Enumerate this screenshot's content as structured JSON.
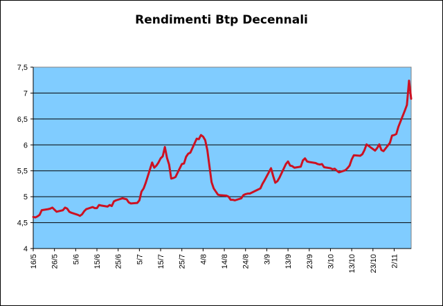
{
  "chart_data": {
    "type": "line",
    "title": "Rendimenti Btp Decennali",
    "xlabel": "",
    "ylabel": "",
    "ylim": [
      4,
      7.5
    ],
    "yticks": [
      "4",
      "4,5",
      "5",
      "5,5",
      "6",
      "6,5",
      "7",
      "7,5"
    ],
    "ytick_values": [
      4,
      4.5,
      5,
      5.5,
      6,
      6.5,
      7,
      7.5
    ],
    "xlim": [
      "2011-05-16",
      "2011-11-10"
    ],
    "xticks": [
      "16/5",
      "26/5",
      "5/6",
      "15/6",
      "25/6",
      "5/7",
      "15/7",
      "25/7",
      "4/8",
      "14/8",
      "24/8",
      "3/9",
      "13/9",
      "23/9",
      "3/10",
      "13/10",
      "23/10",
      "2/11"
    ],
    "xtick_dates": [
      "2011-05-16",
      "2011-05-26",
      "2011-06-05",
      "2011-06-15",
      "2011-06-25",
      "2011-07-05",
      "2011-07-15",
      "2011-07-25",
      "2011-08-04",
      "2011-08-14",
      "2011-08-24",
      "2011-09-03",
      "2011-09-13",
      "2011-09-23",
      "2011-10-03",
      "2011-10-13",
      "2011-10-23",
      "2011-11-02"
    ],
    "grid": "horizontal",
    "plot_background": "#80ccff",
    "series": [
      {
        "name": "",
        "color": "#cc1122",
        "points": [
          [
            "2011-05-16",
            4.61
          ],
          [
            "2011-05-17",
            4.6
          ],
          [
            "2011-05-18",
            4.62
          ],
          [
            "2011-05-19",
            4.65
          ],
          [
            "2011-05-20",
            4.74
          ],
          [
            "2011-05-23",
            4.76
          ],
          [
            "2011-05-24",
            4.77
          ],
          [
            "2011-05-25",
            4.79
          ],
          [
            "2011-05-26",
            4.75
          ],
          [
            "2011-05-27",
            4.71
          ],
          [
            "2011-05-30",
            4.74
          ],
          [
            "2011-05-31",
            4.79
          ],
          [
            "2011-06-01",
            4.77
          ],
          [
            "2011-06-02",
            4.71
          ],
          [
            "2011-06-03",
            4.69
          ],
          [
            "2011-06-06",
            4.65
          ],
          [
            "2011-06-07",
            4.63
          ],
          [
            "2011-06-08",
            4.66
          ],
          [
            "2011-06-09",
            4.72
          ],
          [
            "2011-06-10",
            4.76
          ],
          [
            "2011-06-13",
            4.8
          ],
          [
            "2011-06-14",
            4.78
          ],
          [
            "2011-06-15",
            4.78
          ],
          [
            "2011-06-16",
            4.84
          ],
          [
            "2011-06-17",
            4.83
          ],
          [
            "2011-06-20",
            4.81
          ],
          [
            "2011-06-21",
            4.84
          ],
          [
            "2011-06-22",
            4.82
          ],
          [
            "2011-06-23",
            4.91
          ],
          [
            "2011-06-24",
            4.93
          ],
          [
            "2011-06-27",
            4.97
          ],
          [
            "2011-06-28",
            4.96
          ],
          [
            "2011-06-29",
            4.95
          ],
          [
            "2011-06-30",
            4.89
          ],
          [
            "2011-07-01",
            4.87
          ],
          [
            "2011-07-04",
            4.88
          ],
          [
            "2011-07-05",
            4.93
          ],
          [
            "2011-07-06",
            5.1
          ],
          [
            "2011-07-07",
            5.16
          ],
          [
            "2011-07-08",
            5.27
          ],
          [
            "2011-07-11",
            5.66
          ],
          [
            "2011-07-12",
            5.56
          ],
          [
            "2011-07-13",
            5.6
          ],
          [
            "2011-07-14",
            5.66
          ],
          [
            "2011-07-15",
            5.74
          ],
          [
            "2011-07-16",
            5.78
          ],
          [
            "2011-07-17",
            5.96
          ],
          [
            "2011-07-18",
            5.75
          ],
          [
            "2011-07-19",
            5.62
          ],
          [
            "2011-07-20",
            5.35
          ],
          [
            "2011-07-21",
            5.36
          ],
          [
            "2011-07-22",
            5.38
          ],
          [
            "2011-07-25",
            5.63
          ],
          [
            "2011-07-26",
            5.64
          ],
          [
            "2011-07-27",
            5.77
          ],
          [
            "2011-07-28",
            5.83
          ],
          [
            "2011-07-29",
            5.85
          ],
          [
            "2011-08-01",
            6.12
          ],
          [
            "2011-08-02",
            6.11
          ],
          [
            "2011-08-03",
            6.19
          ],
          [
            "2011-08-04",
            6.16
          ],
          [
            "2011-08-05",
            6.09
          ],
          [
            "2011-08-06",
            5.9
          ],
          [
            "2011-08-08",
            5.28
          ],
          [
            "2011-08-09",
            5.16
          ],
          [
            "2011-08-10",
            5.1
          ],
          [
            "2011-08-11",
            5.04
          ],
          [
            "2011-08-12",
            5.03
          ],
          [
            "2011-08-15",
            5.02
          ],
          [
            "2011-08-16",
            5.0
          ],
          [
            "2011-08-17",
            4.94
          ],
          [
            "2011-08-18",
            4.94
          ],
          [
            "2011-08-19",
            4.93
          ],
          [
            "2011-08-22",
            4.97
          ],
          [
            "2011-08-23",
            5.03
          ],
          [
            "2011-08-24",
            5.05
          ],
          [
            "2011-08-25",
            5.06
          ],
          [
            "2011-08-26",
            5.06
          ],
          [
            "2011-08-29",
            5.12
          ],
          [
            "2011-08-30",
            5.14
          ],
          [
            "2011-08-31",
            5.16
          ],
          [
            "2011-09-01",
            5.25
          ],
          [
            "2011-09-02",
            5.32
          ],
          [
            "2011-09-05",
            5.55
          ],
          [
            "2011-09-06",
            5.4
          ],
          [
            "2011-09-07",
            5.27
          ],
          [
            "2011-09-08",
            5.3
          ],
          [
            "2011-09-09",
            5.37
          ],
          [
            "2011-09-12",
            5.63
          ],
          [
            "2011-09-13",
            5.68
          ],
          [
            "2011-09-14",
            5.6
          ],
          [
            "2011-09-15",
            5.59
          ],
          [
            "2011-09-16",
            5.56
          ],
          [
            "2011-09-19",
            5.58
          ],
          [
            "2011-09-20",
            5.7
          ],
          [
            "2011-09-21",
            5.74
          ],
          [
            "2011-09-22",
            5.68
          ],
          [
            "2011-09-23",
            5.67
          ],
          [
            "2011-09-26",
            5.65
          ],
          [
            "2011-09-27",
            5.63
          ],
          [
            "2011-09-28",
            5.62
          ],
          [
            "2011-09-29",
            5.63
          ],
          [
            "2011-09-30",
            5.57
          ],
          [
            "2011-10-03",
            5.55
          ],
          [
            "2011-10-04",
            5.53
          ],
          [
            "2011-10-05",
            5.54
          ],
          [
            "2011-10-06",
            5.5
          ],
          [
            "2011-10-07",
            5.47
          ],
          [
            "2011-10-10",
            5.51
          ],
          [
            "2011-10-11",
            5.55
          ],
          [
            "2011-10-12",
            5.6
          ],
          [
            "2011-10-13",
            5.72
          ],
          [
            "2011-10-14",
            5.8
          ],
          [
            "2011-10-17",
            5.79
          ],
          [
            "2011-10-18",
            5.82
          ],
          [
            "2011-10-19",
            5.9
          ],
          [
            "2011-10-20",
            6.01
          ],
          [
            "2011-10-21",
            5.98
          ],
          [
            "2011-10-24",
            5.89
          ],
          [
            "2011-10-25",
            5.94
          ],
          [
            "2011-10-26",
            6.01
          ],
          [
            "2011-10-27",
            5.9
          ],
          [
            "2011-10-28",
            5.88
          ],
          [
            "2011-10-31",
            6.04
          ],
          [
            "2011-11-01",
            6.18
          ],
          [
            "2011-11-02",
            6.19
          ],
          [
            "2011-11-03",
            6.21
          ],
          [
            "2011-11-04",
            6.35
          ],
          [
            "2011-11-07",
            6.66
          ],
          [
            "2011-11-08",
            6.77
          ],
          [
            "2011-11-09",
            7.24
          ],
          [
            "2011-11-10",
            6.89
          ]
        ]
      }
    ]
  }
}
